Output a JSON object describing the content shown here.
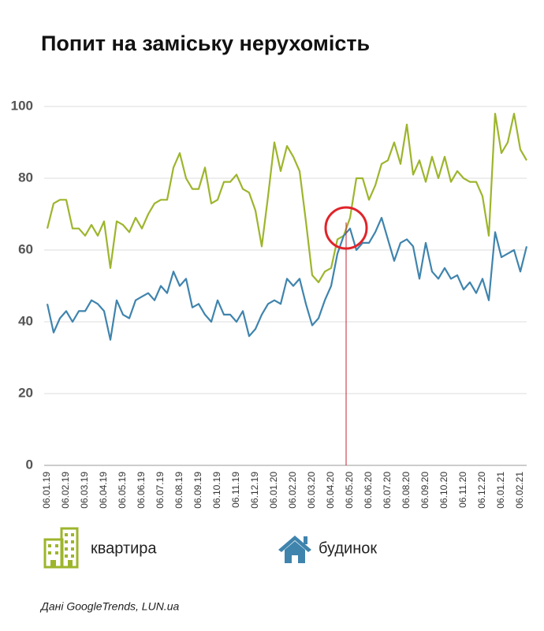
{
  "chart_data": {
    "type": "line",
    "title": "Попит на заміську нерухомість",
    "source": "Дані GoogleTrends, LUN.ua",
    "categories": [
      "06.01.19",
      null,
      null,
      "06.02.19",
      null,
      null,
      "06.03.19",
      null,
      null,
      "06.04.19",
      null,
      null,
      "06.05.19",
      null,
      null,
      "06.06.19",
      null,
      null,
      "06.07.19",
      null,
      null,
      "06.08.19",
      null,
      null,
      "06.09.19",
      null,
      null,
      "06.10.19",
      null,
      null,
      "06.11.19",
      null,
      null,
      "06.12.19",
      null,
      null,
      "06.01.20",
      null,
      null,
      "06.02.20",
      null,
      null,
      "06.03.20",
      null,
      null,
      "06.04.20",
      null,
      null,
      "06.05.20",
      null,
      null,
      "06.06.20",
      null,
      null,
      "06.07.20",
      null,
      null,
      "06.08.20",
      null,
      null,
      "06.09.20",
      null,
      null,
      "06.10.20",
      null,
      null,
      "06.11.20",
      null,
      null,
      "06.12.20",
      null,
      null,
      "06.01.21",
      null,
      null,
      "06.02.21",
      null
    ],
    "series": [
      {
        "name": "квартира",
        "color": "#9db52c",
        "values": [
          66,
          73,
          74,
          74,
          66,
          66,
          64,
          67,
          64,
          68,
          55,
          68,
          67,
          65,
          69,
          66,
          70,
          73,
          74,
          74,
          83,
          87,
          80,
          77,
          77,
          83,
          73,
          74,
          79,
          79,
          81,
          77,
          76,
          71,
          61,
          75,
          90,
          82,
          89,
          86,
          82,
          68,
          53,
          51,
          54,
          55,
          63,
          64,
          69,
          80,
          80,
          74,
          78,
          84,
          85,
          90,
          84,
          95,
          81,
          85,
          79,
          86,
          80,
          86,
          79,
          82,
          80,
          79,
          79,
          75,
          64,
          98,
          87,
          90,
          98,
          88,
          85
        ]
      },
      {
        "name": "будинок",
        "color": "#3f84ad",
        "values": [
          45,
          37,
          41,
          43,
          40,
          43,
          43,
          46,
          45,
          43,
          35,
          46,
          42,
          41,
          46,
          47,
          48,
          46,
          50,
          48,
          54,
          50,
          52,
          44,
          45,
          42,
          40,
          46,
          42,
          42,
          40,
          43,
          36,
          38,
          42,
          45,
          46,
          45,
          52,
          50,
          52,
          45,
          39,
          41,
          46,
          50,
          59,
          64,
          66,
          60,
          62,
          62,
          65,
          69,
          63,
          57,
          62,
          63,
          61,
          52,
          62,
          54,
          52,
          55,
          52,
          53,
          49,
          51,
          48,
          52,
          46,
          65,
          58,
          59,
          60,
          54,
          61
        ]
      }
    ],
    "ylim": [
      0,
      100
    ],
    "yticks": [
      0,
      20,
      40,
      60,
      80,
      100
    ],
    "grid": true
  }
}
